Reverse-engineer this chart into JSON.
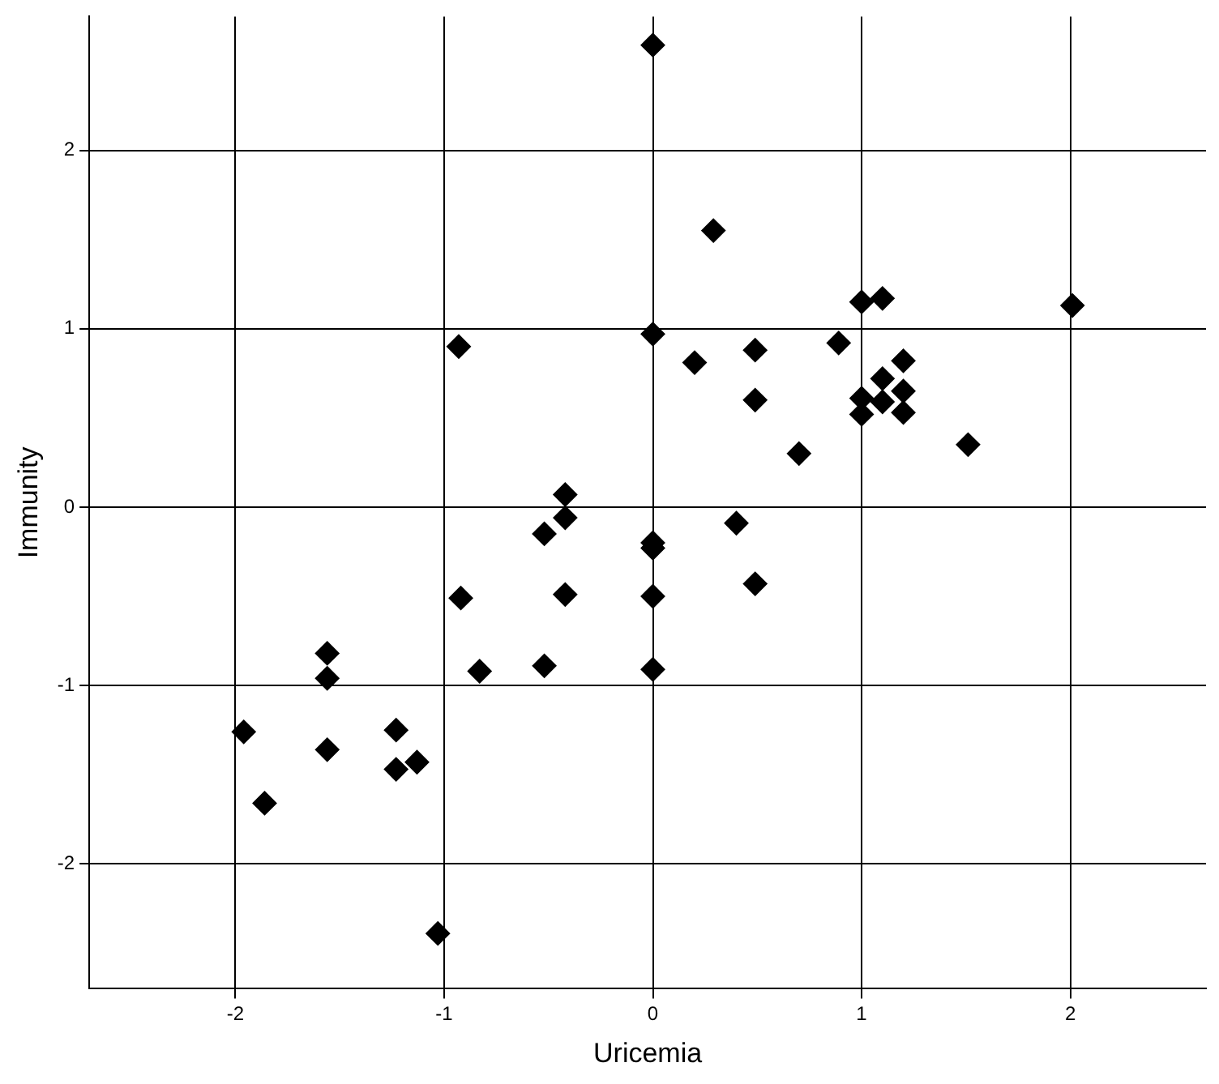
{
  "chart_data": {
    "type": "scatter",
    "xlabel": "Uricemia",
    "ylabel": "Immunity",
    "xlim": [
      -2.7,
      2.65
    ],
    "ylim": [
      -2.7,
      2.75
    ],
    "xticks": [
      -2,
      -1,
      0,
      1,
      2
    ],
    "yticks": [
      -2,
      -1,
      0,
      1,
      2
    ],
    "grid": true,
    "legend": false,
    "marker": "diamond",
    "series": [
      {
        "color": "#000000",
        "x": [
          0,
          0.29,
          0,
          0.2,
          0.49,
          0.49,
          0.89,
          1.0,
          1.1,
          2.01,
          1.0,
          1.0,
          1.1,
          1.1,
          1.2,
          1.2,
          1.2,
          1.51,
          0.7,
          -0.93,
          -0.42,
          -0.42,
          -0.52,
          0,
          0,
          0.4,
          0.49,
          -0.42,
          -0.92,
          0,
          -0.83,
          -0.52,
          0,
          -1.56,
          -1.56,
          -1.56,
          -1.96,
          -1.86,
          -1.23,
          -1.23,
          -1.13,
          -1.03
        ],
        "values": [
          2.59,
          1.55,
          0.97,
          0.81,
          0.88,
          0.6,
          0.92,
          1.15,
          1.17,
          1.13,
          0.61,
          0.52,
          0.72,
          0.59,
          0.82,
          0.65,
          0.53,
          0.35,
          0.3,
          0.9,
          0.07,
          -0.06,
          -0.15,
          -0.2,
          -0.23,
          -0.09,
          -0.43,
          -0.49,
          -0.51,
          -0.5,
          -0.92,
          -0.89,
          -0.91,
          -0.82,
          -0.96,
          -1.36,
          -1.26,
          -1.66,
          -1.25,
          -1.47,
          -1.43,
          -2.39
        ]
      }
    ]
  }
}
